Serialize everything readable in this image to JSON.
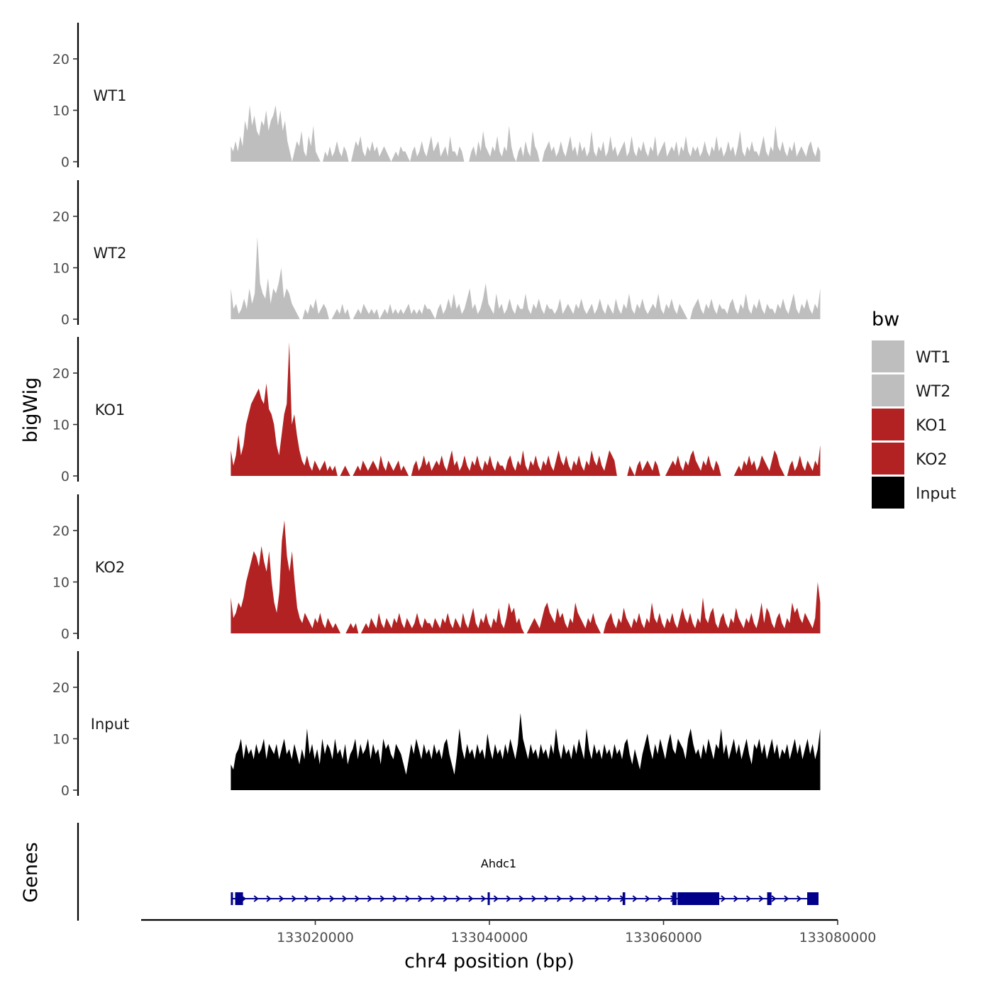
{
  "chart_data": {
    "type": "area",
    "y_axis_title": "bigWig",
    "x_axis_title": "chr4 position (bp)",
    "genes_axis_title": "Genes",
    "x_range": [
      133000000,
      133080000
    ],
    "data_range": [
      133010300,
      133078000
    ],
    "x_ticks": [
      {
        "value": 133020000,
        "label": "133020000"
      },
      {
        "value": 133040000,
        "label": "133040000"
      },
      {
        "value": 133060000,
        "label": "133060000"
      },
      {
        "value": 133080000,
        "label": "133080000"
      }
    ],
    "y_range": [
      0,
      27
    ],
    "y_ticks": [
      {
        "value": 0,
        "label": "0"
      },
      {
        "value": 10,
        "label": "10"
      },
      {
        "value": 20,
        "label": "20"
      }
    ],
    "tracks": [
      {
        "name": "WT1",
        "color": "#bebebe",
        "x_start": 133010300,
        "x_end": 133078000,
        "values": [
          3,
          2,
          4,
          2,
          5,
          3,
          8,
          6,
          11,
          7,
          9,
          6,
          5,
          8,
          7,
          10,
          6,
          8,
          9,
          11,
          7,
          10,
          6,
          8,
          4,
          2,
          0,
          2,
          4,
          3,
          6,
          2,
          1,
          5,
          3,
          7,
          2,
          1,
          0,
          0,
          2,
          1,
          3,
          1,
          2,
          4,
          2,
          1,
          3,
          2,
          0,
          0,
          2,
          4,
          3,
          5,
          2,
          1,
          3,
          2,
          4,
          2,
          3,
          1,
          2,
          3,
          2,
          1,
          0,
          1,
          2,
          1,
          3,
          2,
          2,
          1,
          0,
          2,
          3,
          1,
          2,
          4,
          2,
          1,
          3,
          5,
          2,
          3,
          4,
          1,
          2,
          3,
          1,
          5,
          2,
          2,
          1,
          3,
          2,
          0,
          0,
          0,
          2,
          3,
          1,
          4,
          2,
          6,
          3,
          2,
          1,
          3,
          2,
          5,
          2,
          1,
          3,
          2,
          7,
          3,
          1,
          0,
          2,
          3,
          1,
          4,
          2,
          1,
          6,
          3,
          2,
          0,
          0,
          2,
          3,
          4,
          2,
          3,
          1,
          2,
          4,
          2,
          1,
          3,
          5,
          2,
          3,
          1,
          4,
          2,
          3,
          1,
          2,
          6,
          2,
          1,
          3,
          2,
          4,
          1,
          2,
          5,
          2,
          3,
          1,
          2,
          3,
          4,
          1,
          2,
          5,
          2,
          1,
          3,
          2,
          4,
          2,
          1,
          3,
          2,
          5,
          1,
          2,
          3,
          4,
          1,
          2,
          3,
          2,
          4,
          1,
          3,
          2,
          5,
          2,
          1,
          3,
          2,
          3,
          1,
          2,
          4,
          2,
          1,
          3,
          2,
          5,
          2,
          3,
          1,
          2,
          4,
          2,
          3,
          1,
          3,
          6,
          2,
          1,
          3,
          2,
          4,
          2,
          2,
          1,
          3,
          5,
          2,
          1,
          3,
          2,
          7,
          3,
          2,
          4,
          2,
          1,
          3,
          2,
          4,
          1,
          2,
          3,
          2,
          1,
          3,
          4,
          2,
          1,
          3,
          2
        ]
      },
      {
        "name": "WT2",
        "color": "#bebebe",
        "x_start": 133010300,
        "x_end": 133078000,
        "values": [
          6,
          2,
          3,
          1,
          2,
          4,
          2,
          6,
          3,
          5,
          16,
          7,
          5,
          4,
          8,
          3,
          6,
          5,
          7,
          10,
          4,
          6,
          5,
          3,
          2,
          1,
          0,
          0,
          2,
          1,
          3,
          2,
          4,
          1,
          2,
          3,
          2,
          0,
          0,
          1,
          2,
          1,
          3,
          1,
          2,
          0,
          0,
          1,
          2,
          1,
          3,
          2,
          1,
          2,
          1,
          2,
          0,
          1,
          2,
          1,
          3,
          1,
          2,
          1,
          2,
          1,
          2,
          3,
          1,
          2,
          1,
          2,
          1,
          3,
          2,
          2,
          1,
          0,
          2,
          3,
          1,
          2,
          4,
          2,
          5,
          2,
          3,
          1,
          2,
          4,
          6,
          2,
          3,
          1,
          2,
          4,
          7,
          3,
          2,
          1,
          5,
          2,
          3,
          1,
          2,
          4,
          2,
          1,
          3,
          2,
          2,
          5,
          2,
          1,
          3,
          2,
          4,
          2,
          1,
          3,
          2,
          2,
          1,
          2,
          4,
          1,
          2,
          3,
          2,
          1,
          3,
          2,
          4,
          2,
          1,
          2,
          3,
          1,
          2,
          4,
          2,
          1,
          3,
          2,
          1,
          4,
          2,
          1,
          3,
          2,
          5,
          2,
          1,
          3,
          2,
          4,
          2,
          1,
          2,
          3,
          2,
          5,
          2,
          1,
          3,
          2,
          4,
          2,
          1,
          3,
          2,
          1,
          0,
          0,
          2,
          3,
          4,
          2,
          1,
          3,
          2,
          4,
          2,
          1,
          3,
          2,
          2,
          1,
          3,
          4,
          2,
          1,
          3,
          2,
          5,
          2,
          1,
          3,
          2,
          4,
          2,
          1,
          3,
          2,
          2,
          1,
          3,
          2,
          4,
          2,
          1,
          3,
          5,
          2,
          1,
          3,
          2,
          4,
          2,
          1,
          3,
          2,
          6
        ]
      },
      {
        "name": "KO1",
        "color": "#b22222",
        "x_start": 133010300,
        "x_end": 133078000,
        "values": [
          5,
          2,
          4,
          8,
          4,
          6,
          10,
          12,
          14,
          15,
          16,
          17,
          15,
          14,
          18,
          13,
          12,
          10,
          6,
          4,
          8,
          12,
          14,
          26,
          10,
          12,
          8,
          5,
          3,
          2,
          4,
          2,
          1,
          3,
          2,
          1,
          2,
          3,
          1,
          2,
          1,
          2,
          0,
          0,
          1,
          2,
          1,
          0,
          0,
          1,
          2,
          1,
          3,
          2,
          1,
          2,
          3,
          2,
          1,
          4,
          2,
          1,
          3,
          2,
          1,
          2,
          3,
          1,
          2,
          1,
          0,
          0,
          2,
          3,
          1,
          2,
          4,
          2,
          3,
          1,
          2,
          3,
          2,
          4,
          2,
          1,
          3,
          5,
          2,
          3,
          1,
          2,
          4,
          2,
          1,
          3,
          2,
          4,
          2,
          1,
          3,
          2,
          4,
          2,
          1,
          3,
          2,
          2,
          1,
          3,
          4,
          2,
          1,
          3,
          2,
          5,
          2,
          1,
          3,
          2,
          4,
          2,
          1,
          3,
          2,
          4,
          2,
          1,
          3,
          5,
          3,
          2,
          4,
          2,
          1,
          3,
          2,
          4,
          2,
          1,
          3,
          2,
          5,
          3,
          2,
          4,
          2,
          1,
          3,
          5,
          4,
          3,
          0,
          0,
          0,
          0,
          0,
          2,
          1,
          0,
          2,
          3,
          1,
          2,
          3,
          2,
          1,
          3,
          2,
          0,
          0,
          0,
          1,
          2,
          3,
          2,
          4,
          2,
          1,
          3,
          2,
          4,
          5,
          3,
          2,
          1,
          3,
          2,
          4,
          2,
          1,
          3,
          2,
          0,
          0,
          0,
          0,
          0,
          0,
          1,
          2,
          1,
          3,
          2,
          4,
          2,
          3,
          1,
          2,
          4,
          3,
          2,
          1,
          3,
          5,
          4,
          2,
          1,
          0,
          0,
          2,
          3,
          1,
          2,
          4,
          2,
          1,
          3,
          2,
          1,
          3,
          2,
          6
        ]
      },
      {
        "name": "KO2",
        "color": "#b22222",
        "x_start": 133010300,
        "x_end": 133078000,
        "values": [
          7,
          3,
          4,
          6,
          5,
          7,
          10,
          12,
          14,
          16,
          15,
          13,
          17,
          14,
          12,
          16,
          10,
          6,
          4,
          8,
          18,
          22,
          15,
          12,
          16,
          10,
          5,
          3,
          2,
          4,
          3,
          2,
          1,
          3,
          2,
          4,
          2,
          1,
          3,
          2,
          1,
          2,
          1,
          0,
          0,
          0,
          1,
          2,
          1,
          2,
          0,
          0,
          1,
          2,
          1,
          3,
          2,
          1,
          4,
          2,
          1,
          3,
          2,
          1,
          3,
          2,
          4,
          2,
          1,
          3,
          2,
          1,
          2,
          4,
          2,
          1,
          3,
          2,
          2,
          1,
          3,
          2,
          1,
          3,
          2,
          4,
          2,
          1,
          3,
          2,
          1,
          4,
          2,
          1,
          3,
          5,
          2,
          1,
          3,
          2,
          4,
          2,
          1,
          3,
          2,
          5,
          2,
          1,
          3,
          6,
          4,
          5,
          2,
          3,
          1,
          0,
          0,
          1,
          2,
          3,
          2,
          1,
          3,
          5,
          6,
          4,
          3,
          2,
          5,
          3,
          4,
          2,
          1,
          3,
          2,
          6,
          4,
          3,
          2,
          1,
          3,
          2,
          4,
          2,
          1,
          0,
          0,
          2,
          3,
          4,
          2,
          1,
          3,
          2,
          5,
          3,
          2,
          1,
          3,
          2,
          4,
          2,
          1,
          3,
          2,
          6,
          3,
          2,
          4,
          2,
          1,
          3,
          2,
          4,
          2,
          1,
          3,
          5,
          3,
          2,
          4,
          2,
          1,
          3,
          2,
          7,
          3,
          2,
          4,
          5,
          2,
          1,
          3,
          4,
          2,
          1,
          3,
          2,
          5,
          3,
          2,
          1,
          3,
          2,
          4,
          2,
          1,
          3,
          6,
          2,
          5,
          4,
          2,
          1,
          3,
          4,
          2,
          1,
          3,
          2,
          6,
          4,
          5,
          3,
          2,
          4,
          3,
          2,
          1,
          3,
          10,
          6
        ]
      },
      {
        "name": "Input",
        "color": "#000000",
        "x_start": 133010300,
        "x_end": 133078000,
        "values": [
          5,
          4,
          7,
          8,
          10,
          6,
          9,
          7,
          8,
          6,
          9,
          7,
          8,
          10,
          6,
          9,
          8,
          7,
          9,
          6,
          8,
          10,
          7,
          8,
          6,
          9,
          7,
          5,
          8,
          6,
          12,
          7,
          9,
          6,
          8,
          5,
          10,
          7,
          9,
          8,
          6,
          10,
          7,
          8,
          6,
          9,
          5,
          7,
          8,
          10,
          6,
          9,
          7,
          8,
          10,
          6,
          9,
          7,
          8,
          5,
          10,
          8,
          9,
          7,
          6,
          9,
          8,
          7,
          5,
          3,
          6,
          9,
          7,
          10,
          8,
          6,
          9,
          7,
          8,
          6,
          9,
          7,
          8,
          6,
          9,
          10,
          7,
          5,
          3,
          7,
          12,
          8,
          6,
          9,
          7,
          8,
          6,
          9,
          7,
          8,
          6,
          11,
          8,
          6,
          9,
          7,
          8,
          6,
          9,
          7,
          10,
          8,
          6,
          9,
          15,
          10,
          8,
          6,
          9,
          7,
          8,
          6,
          9,
          7,
          8,
          6,
          9,
          7,
          12,
          8,
          6,
          9,
          7,
          8,
          6,
          9,
          7,
          10,
          8,
          6,
          12,
          8,
          6,
          9,
          7,
          8,
          6,
          9,
          7,
          8,
          6,
          9,
          7,
          8,
          6,
          9,
          10,
          7,
          5,
          8,
          6,
          4,
          7,
          9,
          11,
          8,
          6,
          9,
          7,
          10,
          8,
          6,
          9,
          11,
          8,
          7,
          10,
          9,
          8,
          6,
          10,
          12,
          9,
          7,
          8,
          6,
          9,
          7,
          10,
          8,
          6,
          9,
          8,
          12,
          7,
          9,
          6,
          8,
          10,
          7,
          9,
          6,
          8,
          10,
          7,
          5,
          9,
          8,
          10,
          7,
          9,
          6,
          8,
          10,
          7,
          9,
          6,
          8,
          7,
          9,
          6,
          8,
          10,
          7,
          9,
          6,
          8,
          10,
          7,
          9,
          6,
          8,
          12
        ]
      }
    ],
    "gene": {
      "name": "Ahdc1",
      "color": "#00008b",
      "start": 133010300,
      "end": 133077800,
      "strand": "+",
      "exons": [
        [
          133010300,
          133010500
        ],
        [
          133010800,
          133011700
        ],
        [
          133039800,
          133040000
        ],
        [
          133055300,
          133055600
        ],
        [
          133061000,
          133061500
        ],
        [
          133061600,
          133066400
        ],
        [
          133071900,
          133072400
        ],
        [
          133076500,
          133077800
        ]
      ]
    },
    "legend": {
      "title": "bw",
      "position": "right",
      "entries": [
        {
          "label": "WT1",
          "color": "#bebebe"
        },
        {
          "label": "WT2",
          "color": "#bebebe"
        },
        {
          "label": "KO1",
          "color": "#b22222"
        },
        {
          "label": "KO2",
          "color": "#b22222"
        },
        {
          "label": "Input",
          "color": "#000000"
        }
      ]
    }
  }
}
